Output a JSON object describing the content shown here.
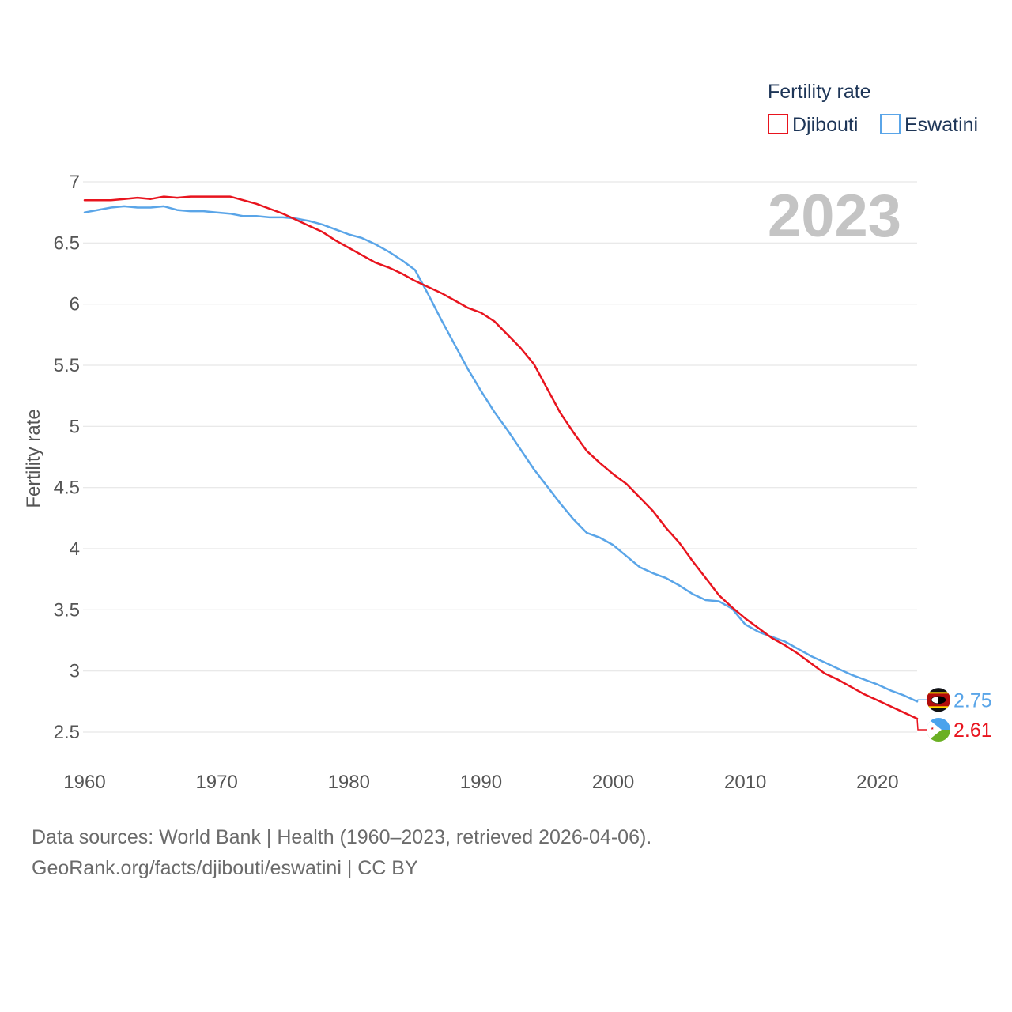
{
  "chart_data": {
    "type": "line",
    "title": "",
    "ylabel": "Fertility rate",
    "xlabel": "",
    "ylim": [
      2.5,
      7
    ],
    "xlim": [
      1960,
      2023
    ],
    "yticks": [
      "2.5",
      "3",
      "3.5",
      "4",
      "4.5",
      "5",
      "5.5",
      "6",
      "6.5",
      "7"
    ],
    "xticks": [
      "1960",
      "1970",
      "1980",
      "1990",
      "2000",
      "2010",
      "2020"
    ],
    "current_year": "2023",
    "legend": {
      "title": "Fertility rate",
      "position": "top-right"
    },
    "x": [
      1960,
      1961,
      1962,
      1963,
      1964,
      1965,
      1966,
      1967,
      1968,
      1969,
      1970,
      1971,
      1972,
      1973,
      1974,
      1975,
      1976,
      1977,
      1978,
      1979,
      1980,
      1981,
      1982,
      1983,
      1984,
      1985,
      1986,
      1987,
      1988,
      1989,
      1990,
      1991,
      1992,
      1993,
      1994,
      1995,
      1996,
      1997,
      1998,
      1999,
      2000,
      2001,
      2002,
      2003,
      2004,
      2005,
      2006,
      2007,
      2008,
      2009,
      2010,
      2011,
      2012,
      2013,
      2014,
      2015,
      2016,
      2017,
      2018,
      2019,
      2020,
      2021,
      2022,
      2023
    ],
    "series": [
      {
        "name": "Djibouti",
        "color": "#e8141e",
        "end_label": "2.61",
        "values": [
          6.85,
          6.85,
          6.85,
          6.86,
          6.87,
          6.86,
          6.88,
          6.87,
          6.88,
          6.88,
          6.88,
          6.88,
          6.85,
          6.82,
          6.78,
          6.74,
          6.69,
          6.64,
          6.59,
          6.52,
          6.46,
          6.4,
          6.34,
          6.3,
          6.25,
          6.19,
          6.14,
          6.09,
          6.03,
          5.97,
          5.93,
          5.86,
          5.75,
          5.64,
          5.51,
          5.31,
          5.11,
          4.95,
          4.8,
          4.7,
          4.61,
          4.53,
          4.42,
          4.31,
          4.17,
          4.05,
          3.9,
          3.76,
          3.62,
          3.52,
          3.43,
          3.35,
          3.27,
          3.21,
          3.14,
          3.06,
          2.98,
          2.93,
          2.87,
          2.81,
          2.76,
          2.71,
          2.66,
          2.61
        ]
      },
      {
        "name": "Eswatini",
        "color": "#5aa5e8",
        "end_label": "2.75",
        "values": [
          6.75,
          6.77,
          6.79,
          6.8,
          6.79,
          6.79,
          6.8,
          6.77,
          6.76,
          6.76,
          6.75,
          6.74,
          6.72,
          6.72,
          6.71,
          6.71,
          6.7,
          6.68,
          6.65,
          6.61,
          6.57,
          6.54,
          6.49,
          6.43,
          6.36,
          6.28,
          6.08,
          5.87,
          5.67,
          5.47,
          5.29,
          5.12,
          4.97,
          4.81,
          4.65,
          4.51,
          4.37,
          4.24,
          4.13,
          4.09,
          4.03,
          3.94,
          3.85,
          3.8,
          3.76,
          3.7,
          3.63,
          3.58,
          3.57,
          3.51,
          3.38,
          3.32,
          3.28,
          3.24,
          3.18,
          3.12,
          3.07,
          3.02,
          2.97,
          2.93,
          2.89,
          2.84,
          2.8,
          2.75
        ]
      }
    ]
  },
  "footer": {
    "line1": "Data sources: World Bank | Health (1960–2023, retrieved 2026-04-06).",
    "line2": "GeoRank.org/facts/djibouti/eswatini | CC BY"
  }
}
